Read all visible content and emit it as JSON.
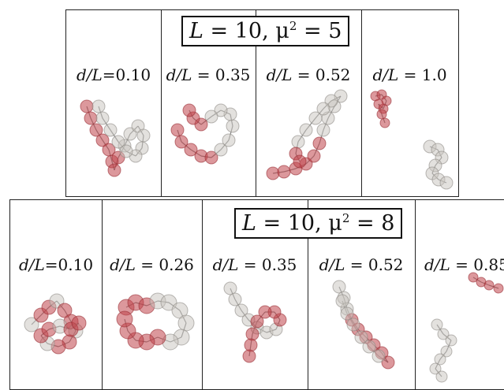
{
  "top": {
    "title": {
      "L": "L",
      "L_value": "= 10,",
      "mu": "μ",
      "mu_exp": "2",
      "mu_value": "= 5"
    },
    "panels": [
      {
        "d_label": "d/L",
        "value": "=0.10"
      },
      {
        "d_label": "d/L",
        "value": " = 0.35"
      },
      {
        "d_label": "d/L",
        "value": " = 0.52"
      },
      {
        "d_label": "d/L",
        "value": " = 1.0"
      }
    ]
  },
  "bottom": {
    "title": {
      "L": "L",
      "L_value": "= 10,",
      "mu": "μ",
      "mu_exp": "2",
      "mu_value": "= 8"
    },
    "panels": [
      {
        "d_label": "d/L",
        "value": "=0.10"
      },
      {
        "d_label": "d/L",
        "value": " = 0.26"
      },
      {
        "d_label": "d/L",
        "value": " = 0.35"
      },
      {
        "d_label": "d/L",
        "value": " = 0.52"
      },
      {
        "d_label": "d/L",
        "value": " = 0.85"
      }
    ]
  },
  "colors": {
    "red_bead": "#c0444a",
    "grey_bead": "#c8c4be"
  }
}
